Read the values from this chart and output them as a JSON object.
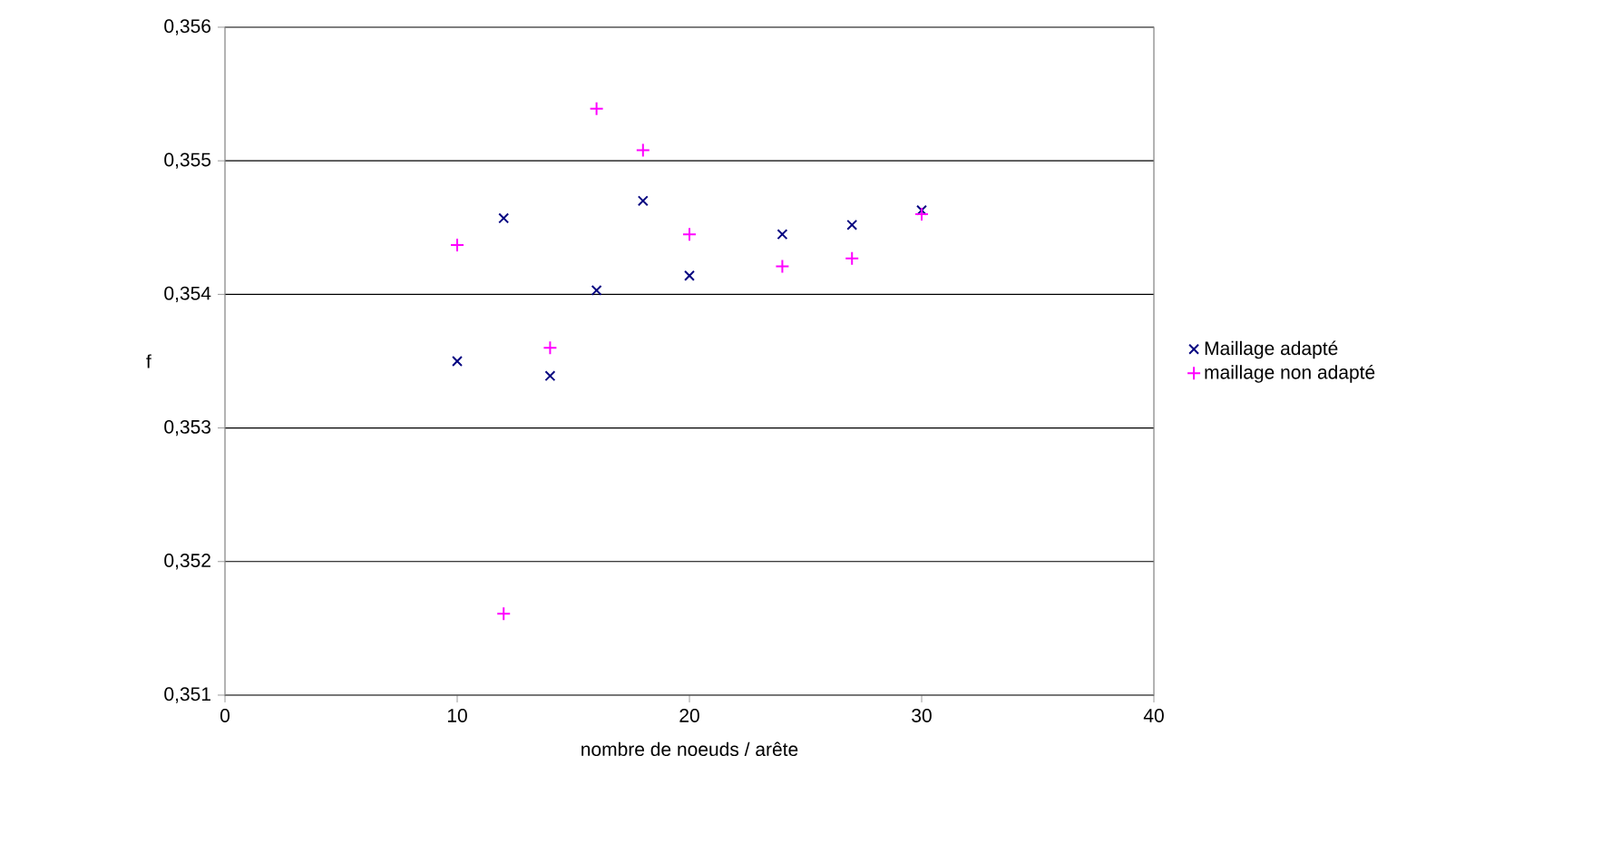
{
  "chart_data": {
    "type": "scatter",
    "xlabel": "nombre de noeuds / arête",
    "ylabel": "f",
    "x": [
      10,
      12,
      14,
      16,
      18,
      20,
      24,
      27,
      30
    ],
    "series": [
      {
        "name": "Maillage adapté",
        "color": "#000080",
        "marker": "cross",
        "values": [
          0.3535,
          0.35457,
          0.35339,
          0.35403,
          0.3547,
          0.35414,
          0.35445,
          0.35452,
          0.35463
        ]
      },
      {
        "name": "maillage non adapté",
        "color": "#ff00ff",
        "marker": "plus",
        "values": [
          0.35437,
          0.35161,
          0.3536,
          0.35539,
          0.35508,
          0.35445,
          0.35421,
          0.35427,
          0.3546
        ]
      }
    ],
    "xlim": [
      0,
      40
    ],
    "ylim": [
      0.351,
      0.356
    ],
    "xticks": [
      0,
      10,
      20,
      30,
      40
    ],
    "yticks": [
      {
        "value": 0.351,
        "label": "0,351"
      },
      {
        "value": 0.352,
        "label": "0,352"
      },
      {
        "value": 0.353,
        "label": "0,353"
      },
      {
        "value": 0.354,
        "label": "0,354"
      },
      {
        "value": 0.355,
        "label": "0,355"
      },
      {
        "value": 0.356,
        "label": "0,356"
      }
    ],
    "grid": "y",
    "legend": "right"
  }
}
